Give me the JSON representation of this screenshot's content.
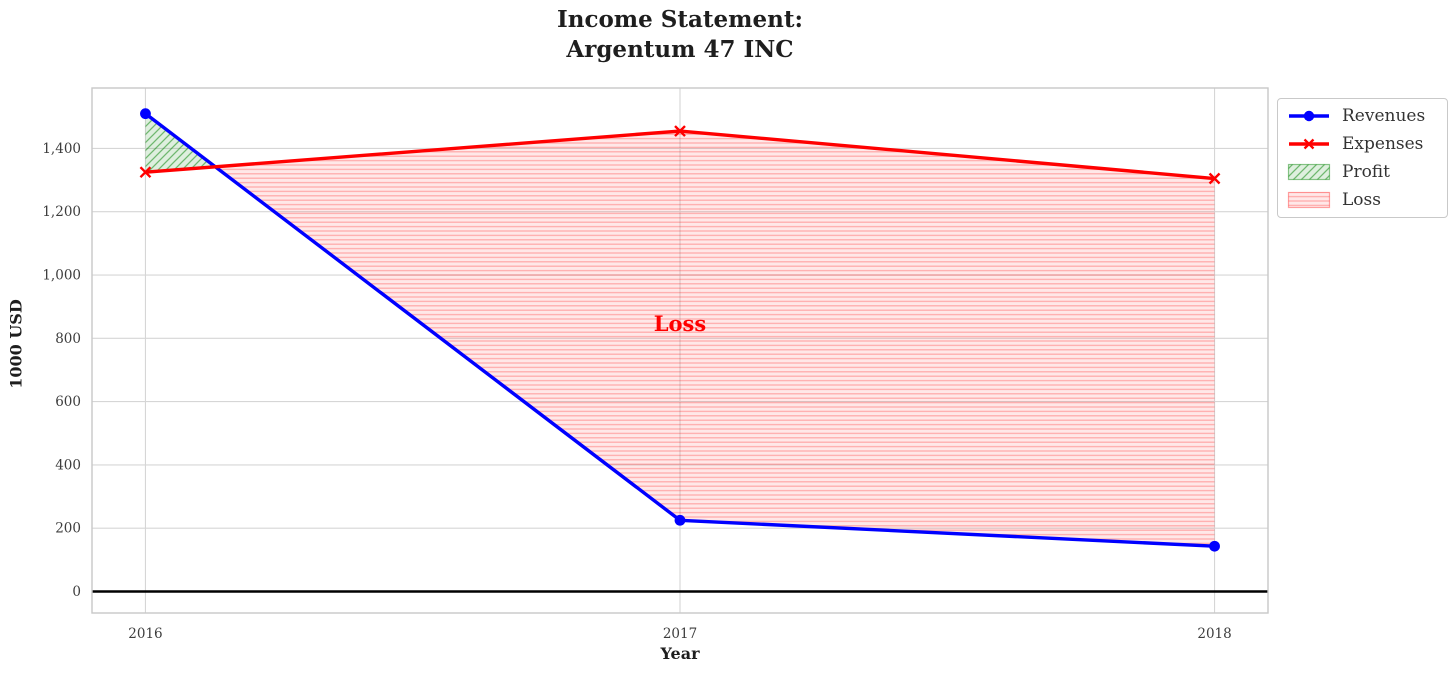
{
  "chart_data": {
    "type": "line",
    "title_line1": "Income Statement:",
    "title_line2": "Argentum 47 INC",
    "xlabel": "Year",
    "ylabel": "1000 USD",
    "x": [
      2016,
      2017,
      2018
    ],
    "x_tick_labels": [
      "2016",
      "2017",
      "2018"
    ],
    "y_ticks": [
      0,
      200,
      400,
      600,
      800,
      1000,
      1200,
      1400
    ],
    "y_tick_labels": [
      "0",
      "200",
      "400",
      "600",
      "800",
      "1,000",
      "1,200",
      "1,400"
    ],
    "xlim": [
      2015.9,
      2018.1
    ],
    "ylim": [
      -68,
      1591
    ],
    "grid": true,
    "legend_position": "outside-top-right",
    "series": [
      {
        "name": "Revenues",
        "color": "#0000ff",
        "marker": "circle",
        "values": [
          1510,
          225,
          143
        ]
      },
      {
        "name": "Expenses",
        "color": "#ff0000",
        "marker": "x",
        "values": [
          1325,
          1455,
          1305
        ]
      }
    ],
    "fills": [
      {
        "name": "Profit",
        "color": "#008000",
        "hatch": "diagonal",
        "region": "revenues_above_expenses"
      },
      {
        "name": "Loss",
        "color": "#ff0000",
        "hatch": "horizontal",
        "region": "expenses_above_revenues"
      }
    ],
    "annotations": [
      {
        "text": "Loss",
        "x": 2017,
        "y": 845,
        "color": "#ff0000"
      }
    ],
    "zero_line_color": "#000000",
    "grid_color": "#d6d6d6",
    "axis_border_color": "#c8c8c8",
    "tick_text_color": "#3d3d3d"
  },
  "legend": {
    "items": [
      "Revenues",
      "Expenses",
      "Profit",
      "Loss"
    ]
  }
}
